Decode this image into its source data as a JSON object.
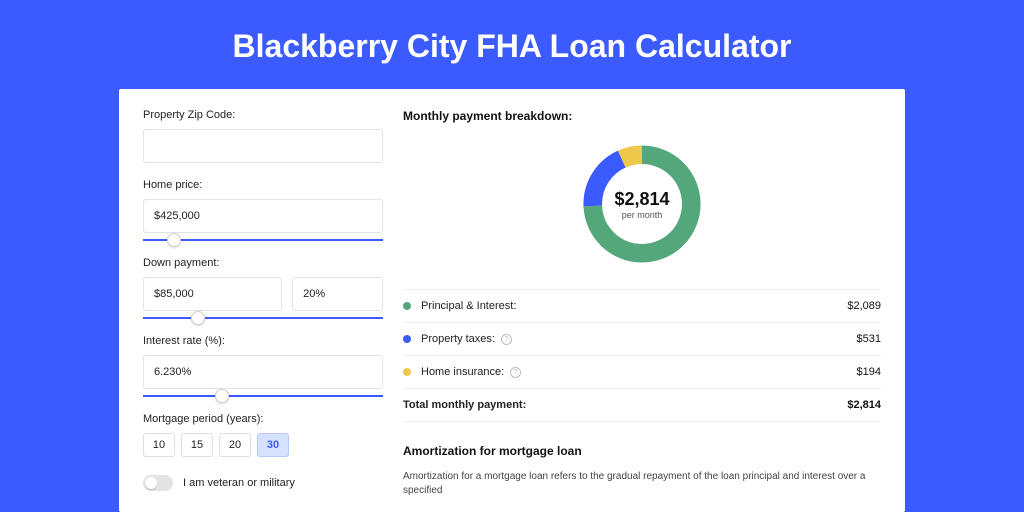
{
  "page": {
    "title": "Blackberry City FHA Loan Calculator"
  },
  "form": {
    "zip": {
      "label": "Property Zip Code:",
      "value": ""
    },
    "home_price": {
      "label": "Home price:",
      "value": "$425,000",
      "slider_pct": 10
    },
    "down_payment": {
      "label": "Down payment:",
      "amount": "$85,000",
      "percent": "20%",
      "slider_pct": 20
    },
    "interest_rate": {
      "label": "Interest rate (%):",
      "value": "6.230%",
      "slider_pct": 30
    },
    "mortgage_period": {
      "label": "Mortgage period (years):",
      "options": [
        "10",
        "15",
        "20",
        "30"
      ],
      "active": "30"
    },
    "veteran": {
      "label": "I am veteran or military",
      "on": false
    }
  },
  "breakdown": {
    "title": "Monthly payment breakdown:",
    "donut": {
      "value": "$2,814",
      "sub": "per month",
      "segments": [
        {
          "color": "#54a77a",
          "pct": 74.2
        },
        {
          "color": "#3b5bff",
          "pct": 18.9
        },
        {
          "color": "#eec84b",
          "pct": 6.9
        }
      ]
    },
    "items": [
      {
        "color": "#54a77a",
        "label": "Principal & Interest:",
        "value": "$2,089",
        "info": false
      },
      {
        "color": "#3b5bff",
        "label": "Property taxes:",
        "value": "$531",
        "info": true
      },
      {
        "color": "#eec84b",
        "label": "Home insurance:",
        "value": "$194",
        "info": true
      }
    ],
    "total": {
      "label": "Total monthly payment:",
      "value": "$2,814"
    }
  },
  "amortization": {
    "title": "Amortization for mortgage loan",
    "text": "Amortization for a mortgage loan refers to the gradual repayment of the loan principal and interest over a specified"
  },
  "colors": {
    "accent": "#3b5bff"
  }
}
